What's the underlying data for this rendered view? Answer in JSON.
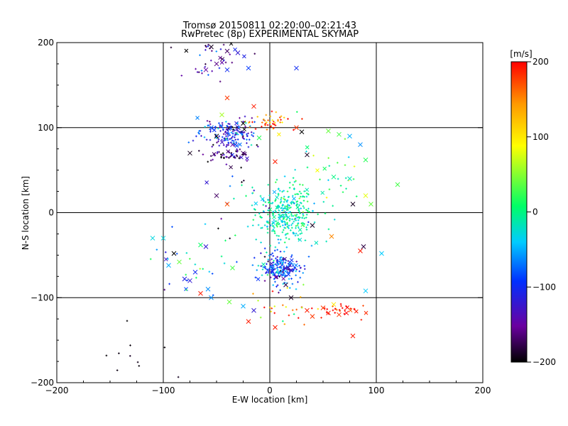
{
  "header": {
    "title": "Tromsø 20150811 02:20:00–02:21:43",
    "subtitle": "RwPretec (8p) EXPERIMENTAL SKYMAP"
  },
  "chart_data": {
    "type": "scatter",
    "title": "Tromsø 20150811 02:20:00–02:21:43",
    "subtitle": "RwPretec (8p) EXPERIMENTAL SKYMAP",
    "xlabel": "E-W location [km]",
    "ylabel": "N-S location [km]",
    "xlim": [
      -200,
      200
    ],
    "ylim": [
      -200,
      200
    ],
    "xticks": [
      -200,
      -100,
      0,
      100,
      200
    ],
    "yticks": [
      -200,
      -100,
      0,
      100,
      200
    ],
    "grid": true,
    "colorbar": {
      "label": "[m/s]",
      "range": [
        -200,
        200
      ],
      "ticks": [
        200,
        100,
        0,
        -100,
        -200
      ],
      "colors": [
        "#000000",
        "#6a00a0",
        "#0030ff",
        "#00ccff",
        "#00ff66",
        "#ffff00",
        "#ff9900",
        "#ff0000"
      ]
    },
    "clusters": [
      {
        "cx": 15,
        "cy": -2,
        "sx": 14,
        "sy": 16,
        "n": 320,
        "v": -15,
        "vs": 22
      },
      {
        "cx": 10,
        "cy": -65,
        "sx": 11,
        "sy": 9,
        "n": 210,
        "v": -90,
        "vs": 40
      },
      {
        "cx": -38,
        "cy": 92,
        "sx": 13,
        "sy": 9,
        "n": 170,
        "v": -110,
        "vs": 45
      },
      {
        "cx": -38,
        "cy": 68,
        "sx": 10,
        "sy": 6,
        "n": 55,
        "v": -160,
        "vs": 30
      },
      {
        "cx": -55,
        "cy": 180,
        "sx": 12,
        "sy": 12,
        "n": 40,
        "v": -140,
        "vs": 40
      },
      {
        "cx": 0,
        "cy": 108,
        "sx": 16,
        "sy": 6,
        "n": 45,
        "v": 150,
        "vs": 45
      },
      {
        "cx": 60,
        "cy": -115,
        "sx": 14,
        "sy": 5,
        "n": 30,
        "v": 190,
        "vs": 15
      },
      {
        "cx": 5,
        "cy": -110,
        "sx": 20,
        "sy": 12,
        "n": 25,
        "v": 130,
        "vs": 70
      },
      {
        "cx": 55,
        "cy": 40,
        "sx": 22,
        "sy": 25,
        "n": 35,
        "v": 10,
        "vs": 40
      },
      {
        "cx": -70,
        "cy": -60,
        "sx": 22,
        "sy": 22,
        "n": 30,
        "v": -60,
        "vs": 70
      },
      {
        "cx": -20,
        "cy": 25,
        "sx": 15,
        "sy": 20,
        "n": 18,
        "v": -80,
        "vs": 80
      },
      {
        "cx": -120,
        "cy": -165,
        "sx": 30,
        "sy": 15,
        "n": 10,
        "v": -195,
        "vs": 5
      }
    ],
    "crosses": [
      {
        "x": -55,
        "y": 195,
        "v": -190
      },
      {
        "x": -40,
        "y": 190,
        "v": -170
      },
      {
        "x": -30,
        "y": 188,
        "v": -120
      },
      {
        "x": -50,
        "y": 175,
        "v": -160
      },
      {
        "x": -40,
        "y": 168,
        "v": -100
      },
      {
        "x": -60,
        "y": 168,
        "v": -150
      },
      {
        "x": 25,
        "y": 170,
        "v": -100
      },
      {
        "x": -20,
        "y": 170,
        "v": -90
      },
      {
        "x": 25,
        "y": 100,
        "v": 180
      },
      {
        "x": 30,
        "y": 95,
        "v": -200
      },
      {
        "x": 35,
        "y": 68,
        "v": -190
      },
      {
        "x": 65,
        "y": 92,
        "v": 30
      },
      {
        "x": 75,
        "y": 90,
        "v": -50
      },
      {
        "x": 85,
        "y": 80,
        "v": -60
      },
      {
        "x": 55,
        "y": 96,
        "v": 40
      },
      {
        "x": 90,
        "y": 62,
        "v": 20
      },
      {
        "x": 60,
        "y": 42,
        "v": 0
      },
      {
        "x": 75,
        "y": 40,
        "v": -20
      },
      {
        "x": 95,
        "y": 10,
        "v": 40
      },
      {
        "x": 78,
        "y": 10,
        "v": -190
      },
      {
        "x": 90,
        "y": 20,
        "v": 80
      },
      {
        "x": 120,
        "y": 33,
        "v": 30
      },
      {
        "x": 40,
        "y": -15,
        "v": -190
      },
      {
        "x": 58,
        "y": -28,
        "v": 150
      },
      {
        "x": 85,
        "y": -45,
        "v": 190
      },
      {
        "x": 88,
        "y": -40,
        "v": -180
      },
      {
        "x": 105,
        "y": -48,
        "v": -40
      },
      {
        "x": 90,
        "y": -92,
        "v": -40
      },
      {
        "x": 60,
        "y": -108,
        "v": 100
      },
      {
        "x": 50,
        "y": -112,
        "v": 180
      },
      {
        "x": 55,
        "y": -118,
        "v": 190
      },
      {
        "x": 65,
        "y": -120,
        "v": 180
      },
      {
        "x": 72,
        "y": -118,
        "v": 200
      },
      {
        "x": 78,
        "y": -145,
        "v": 190
      },
      {
        "x": 35,
        "y": -115,
        "v": 190
      },
      {
        "x": 40,
        "y": -122,
        "v": 180
      },
      {
        "x": 5,
        "y": -135,
        "v": 190
      },
      {
        "x": -20,
        "y": -128,
        "v": 190
      },
      {
        "x": -15,
        "y": -115,
        "v": -120
      },
      {
        "x": -25,
        "y": -110,
        "v": -50
      },
      {
        "x": -38,
        "y": -105,
        "v": 40
      },
      {
        "x": -55,
        "y": -100,
        "v": -60
      },
      {
        "x": -65,
        "y": -95,
        "v": 190
      },
      {
        "x": -75,
        "y": -80,
        "v": -120
      },
      {
        "x": -80,
        "y": -78,
        "v": -110
      },
      {
        "x": -90,
        "y": -48,
        "v": -200
      },
      {
        "x": -95,
        "y": -62,
        "v": -50
      },
      {
        "x": -110,
        "y": -30,
        "v": -30
      },
      {
        "x": -100,
        "y": -30,
        "v": -30
      },
      {
        "x": -85,
        "y": -58,
        "v": 40
      },
      {
        "x": -60,
        "y": -40,
        "v": -120
      },
      {
        "x": -65,
        "y": -38,
        "v": 10
      },
      {
        "x": -35,
        "y": -65,
        "v": 30
      },
      {
        "x": -58,
        "y": -90,
        "v": -60
      },
      {
        "x": -40,
        "y": 135,
        "v": 180
      },
      {
        "x": -15,
        "y": 125,
        "v": 190
      },
      {
        "x": -50,
        "y": 90,
        "v": -200
      },
      {
        "x": -35,
        "y": 80,
        "v": -150
      },
      {
        "x": -25,
        "y": 70,
        "v": -170
      },
      {
        "x": -75,
        "y": 70,
        "v": -190
      },
      {
        "x": -55,
        "y": 100,
        "v": -80
      },
      {
        "x": -45,
        "y": 115,
        "v": 60
      },
      {
        "x": 5,
        "y": 60,
        "v": 190
      },
      {
        "x": -10,
        "y": 88,
        "v": 20
      },
      {
        "x": -25,
        "y": 105,
        "v": -200
      },
      {
        "x": -70,
        "y": -70,
        "v": -100
      },
      {
        "x": 15,
        "y": -85,
        "v": -180
      },
      {
        "x": 20,
        "y": -100,
        "v": -190
      },
      {
        "x": -50,
        "y": 20,
        "v": -170
      },
      {
        "x": -40,
        "y": 10,
        "v": 170
      }
    ]
  }
}
